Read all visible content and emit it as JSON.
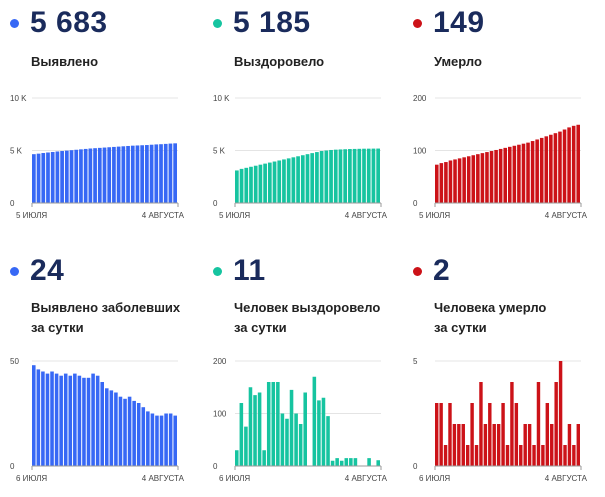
{
  "colors": {
    "blue": "#3768f5",
    "green": "#16c4a0",
    "red": "#cc1218",
    "headline": "#1a2b5c"
  },
  "panels": [
    {
      "value": "5 683",
      "label_line1": "Выявлено",
      "label_line2": "",
      "color": "#3768f5"
    },
    {
      "value": "5 185",
      "label_line1": "Выздоровело",
      "label_line2": "",
      "color": "#16c4a0"
    },
    {
      "value": "149",
      "label_line1": "Умерло",
      "label_line2": "",
      "color": "#cc1218"
    },
    {
      "value": "24",
      "label_line1": "Выявлено заболевших",
      "label_line2": "за сутки",
      "color": "#3768f5"
    },
    {
      "value": "11",
      "label_line1": "Человек выздоровело",
      "label_line2": "за сутки",
      "color": "#16c4a0"
    },
    {
      "value": "2",
      "label_line1": "Человека умерло",
      "label_line2": "за сутки",
      "color": "#cc1218"
    }
  ],
  "chart_data": [
    {
      "type": "bar",
      "color": "#3768f5",
      "ylim": [
        0,
        10000
      ],
      "y_ticks": [
        "10 K",
        "5 K",
        "0"
      ],
      "y_tick_values": [
        10000,
        5000,
        0
      ],
      "x_tick_labels": [
        "5 ИЮЛЯ",
        "4 АВГУСТА"
      ],
      "values": [
        4650,
        4700,
        4760,
        4810,
        4860,
        4910,
        4950,
        4990,
        5030,
        5070,
        5110,
        5150,
        5190,
        5220,
        5250,
        5280,
        5310,
        5340,
        5370,
        5400,
        5430,
        5460,
        5480,
        5500,
        5520,
        5550,
        5580,
        5600,
        5630,
        5660,
        5683
      ]
    },
    {
      "type": "bar",
      "color": "#16c4a0",
      "ylim": [
        0,
        10000
      ],
      "y_ticks": [
        "10 K",
        "5 K",
        "0"
      ],
      "y_tick_values": [
        10000,
        5000,
        0
      ],
      "x_tick_labels": [
        "5 ИЮЛЯ",
        "4 АВГУСТА"
      ],
      "values": [
        3100,
        3250,
        3350,
        3450,
        3550,
        3650,
        3750,
        3850,
        3950,
        4050,
        4150,
        4250,
        4350,
        4450,
        4550,
        4650,
        4750,
        4850,
        4950,
        5000,
        5050,
        5080,
        5100,
        5120,
        5140,
        5150,
        5160,
        5170,
        5175,
        5180,
        5185
      ]
    },
    {
      "type": "bar",
      "color": "#cc1218",
      "ylim": [
        0,
        200
      ],
      "y_ticks": [
        "200",
        "100",
        "0"
      ],
      "y_tick_values": [
        200,
        100,
        0
      ],
      "x_tick_labels": [
        "5 ИЮЛЯ",
        "4 АВГУСТА"
      ],
      "values": [
        73,
        76,
        78,
        81,
        83,
        85,
        87,
        89,
        91,
        93,
        95,
        97,
        99,
        101,
        103,
        105,
        107,
        109,
        111,
        113,
        115,
        118,
        121,
        124,
        127,
        130,
        133,
        136,
        140,
        144,
        147,
        149
      ]
    },
    {
      "type": "bar",
      "color": "#3768f5",
      "ylim": [
        0,
        50
      ],
      "y_ticks": [
        "50",
        "0"
      ],
      "y_tick_values": [
        50,
        0
      ],
      "x_tick_labels": [
        "6 ИЮЛЯ",
        "4 АВГУСТА"
      ],
      "values": [
        48,
        46,
        45,
        44,
        45,
        44,
        43,
        44,
        43,
        44,
        43,
        42,
        42,
        44,
        43,
        40,
        37,
        36,
        35,
        33,
        32,
        33,
        31,
        30,
        28,
        26,
        25,
        24,
        24,
        25,
        25,
        24
      ]
    },
    {
      "type": "bar",
      "color": "#16c4a0",
      "ylim": [
        0,
        200
      ],
      "y_ticks": [
        "200",
        "100",
        "0"
      ],
      "y_tick_values": [
        200,
        100,
        0
      ],
      "x_tick_labels": [
        "6 ИЮЛЯ",
        "4 АВГУСТА"
      ],
      "values": [
        30,
        120,
        75,
        150,
        135,
        140,
        30,
        160,
        160,
        160,
        100,
        90,
        145,
        100,
        80,
        140,
        0,
        170,
        125,
        130,
        95,
        10,
        15,
        10,
        15,
        15,
        15,
        0,
        0,
        15,
        0,
        11
      ]
    },
    {
      "type": "bar",
      "color": "#cc1218",
      "ylim": [
        0,
        5
      ],
      "y_ticks": [
        "5",
        "0"
      ],
      "y_tick_values": [
        5,
        0
      ],
      "x_tick_labels": [
        "6 ИЮЛЯ",
        "4 АВГУСТА"
      ],
      "values": [
        3,
        3,
        1,
        3,
        2,
        2,
        2,
        1,
        3,
        1,
        4,
        2,
        3,
        2,
        2,
        3,
        1,
        4,
        3,
        1,
        2,
        2,
        1,
        4,
        1,
        3,
        2,
        4,
        5,
        1,
        2,
        1,
        2
      ]
    }
  ]
}
